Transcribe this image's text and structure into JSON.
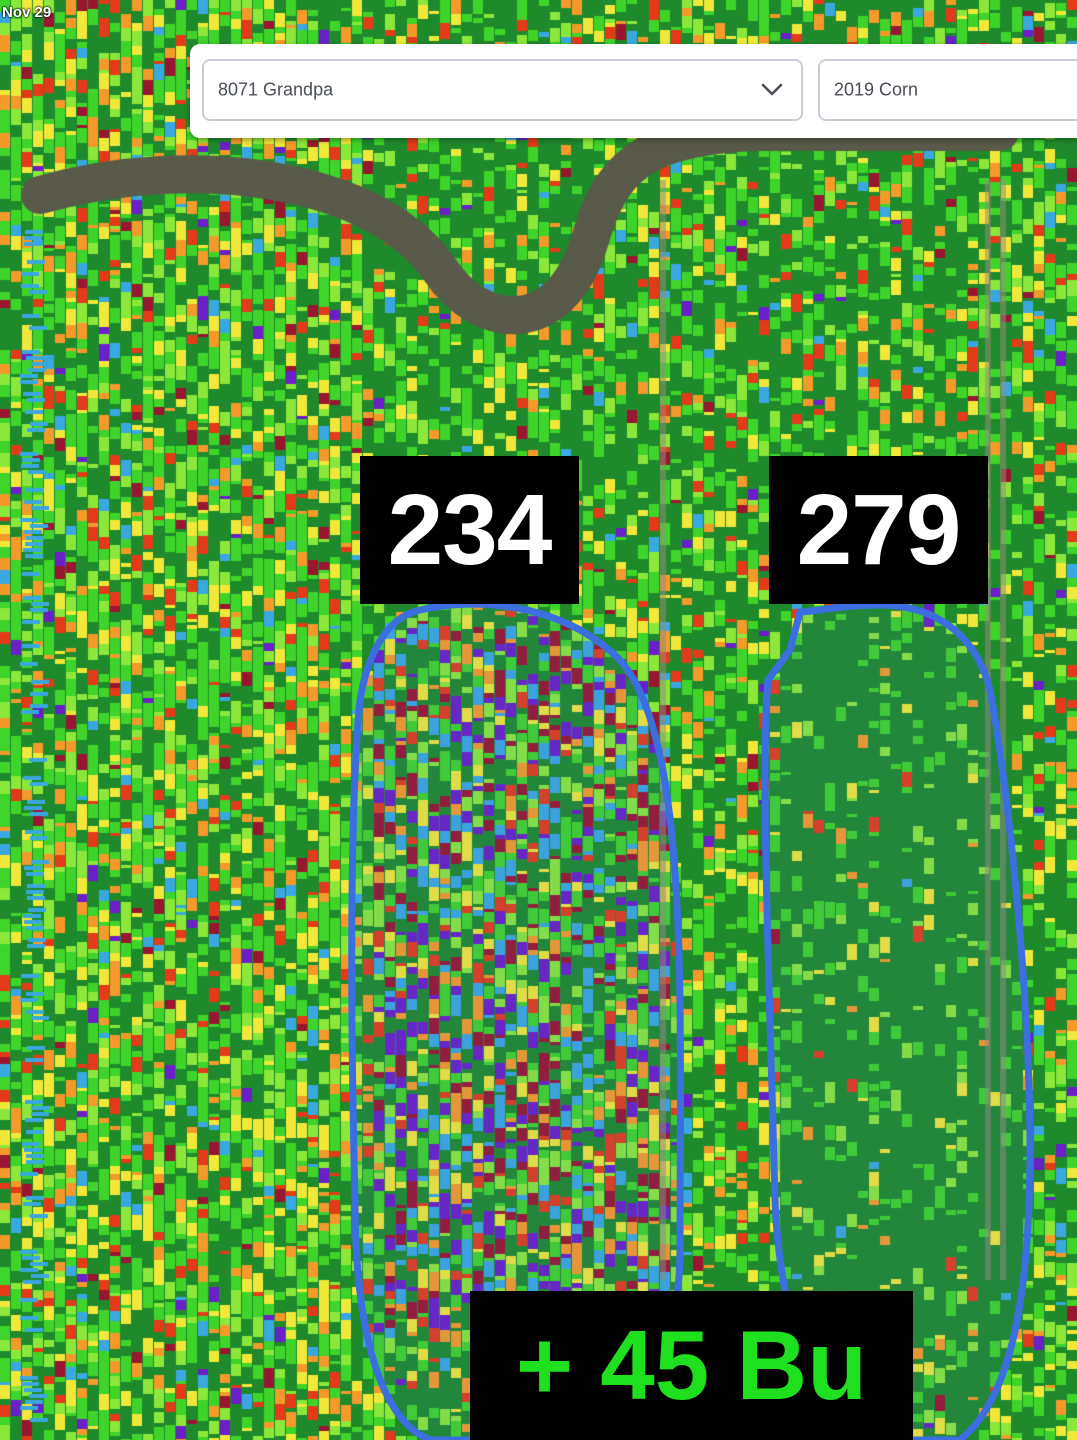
{
  "map": {
    "date_stamp": "Nov 29",
    "field_select": {
      "value": "8071 Grandpa",
      "icon": "chevron-down-icon"
    },
    "season_select": {
      "value": "2019 Corn"
    },
    "zones": [
      {
        "name": "left-zone",
        "yield_label": "234"
      },
      {
        "name": "right-zone",
        "yield_label": "279"
      }
    ],
    "yield_difference": "+ 45 Bu",
    "colors": {
      "zone_outline": "#3b6fe0",
      "label_bg": "#000000",
      "label_text": "#ffffff",
      "difference_text": "#1fe01f",
      "yield_palette": [
        "#1f8a2c",
        "#3fd42a",
        "#8be83a",
        "#f1e83a",
        "#f59a2a",
        "#e43a1a",
        "#9a1530",
        "#6a1fc8",
        "#3aa8e0"
      ]
    }
  }
}
